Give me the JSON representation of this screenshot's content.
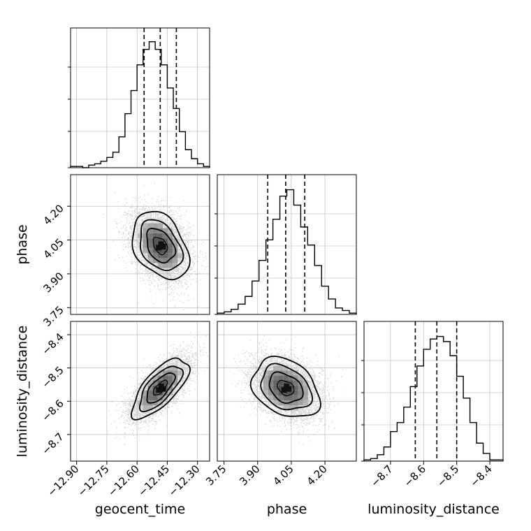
{
  "chart_data": {
    "type": "corner",
    "parameters": [
      "geocent_time",
      "phase",
      "luminosity_distance"
    ],
    "ranges": {
      "geocent_time": [
        -12.93,
        -12.24
      ],
      "phase": [
        3.72,
        4.34
      ],
      "luminosity_distance": [
        -8.78,
        -8.36
      ]
    },
    "ticks": {
      "geocent_time": [
        -12.9,
        -12.75,
        -12.6,
        -12.45,
        -12.3
      ],
      "phase": [
        3.75,
        3.9,
        4.05,
        4.2
      ],
      "luminosity_distance": [
        -8.7,
        -8.6,
        -8.5,
        -8.4
      ]
    },
    "tick_labels": {
      "geocent_time": [
        "−12.90",
        "−12.75",
        "−12.60",
        "−12.45",
        "−12.30"
      ],
      "phase": [
        "3.75",
        "3.90",
        "4.05",
        "4.20"
      ],
      "luminosity_distance": [
        "−8.7",
        "−8.6",
        "−8.5",
        "−8.4"
      ]
    },
    "histograms": [
      {
        "parameter": "geocent_time",
        "bin_range": [
          -12.93,
          -12.24
        ],
        "counts": [
          0.01,
          0.01,
          0.0,
          0.02,
          0.03,
          0.05,
          0.08,
          0.12,
          0.24,
          0.42,
          0.6,
          0.8,
          0.92,
          0.98,
          0.92,
          0.8,
          0.62,
          0.46,
          0.28,
          0.14,
          0.07,
          0.03,
          0.01
        ],
        "quantiles": [
          -12.565,
          -12.485,
          -12.405
        ]
      },
      {
        "parameter": "phase",
        "bin_range": [
          3.72,
          4.34
        ],
        "counts": [
          0.01,
          0.02,
          0.04,
          0.08,
          0.14,
          0.26,
          0.42,
          0.58,
          0.74,
          0.92,
          0.97,
          0.85,
          0.68,
          0.54,
          0.38,
          0.22,
          0.12,
          0.05,
          0.03,
          0.01
        ],
        "quantiles": [
          3.945,
          4.025,
          4.11
        ]
      },
      {
        "parameter": "luminosity_distance",
        "bin_range": [
          -8.78,
          -8.36
        ],
        "counts": [
          0.01,
          0.02,
          0.05,
          0.11,
          0.23,
          0.3,
          0.42,
          0.58,
          0.74,
          0.87,
          0.95,
          0.97,
          0.93,
          0.82,
          0.66,
          0.49,
          0.3,
          0.14,
          0.06,
          0.01,
          0.01
        ],
        "quantiles": [
          -8.625,
          -8.56,
          -8.5
        ]
      }
    ],
    "scatter_panels": [
      {
        "x": "geocent_time",
        "y": "phase",
        "center": [
          -12.485,
          4.025
        ],
        "sd": [
          0.07,
          0.075
        ],
        "rho": -0.35,
        "contour_levels_sigma": [
          0.5,
          1.0,
          1.5,
          2.0
        ],
        "points": 6500
      },
      {
        "x": "geocent_time",
        "y": "luminosity_distance",
        "center": [
          -12.485,
          -8.56
        ],
        "sd": [
          0.07,
          0.045
        ],
        "rho": 0.7,
        "contour_levels_sigma": [
          0.5,
          1.0,
          1.5,
          2.0
        ],
        "points": 6500
      },
      {
        "x": "phase",
        "y": "luminosity_distance",
        "center": [
          4.025,
          -8.56
        ],
        "sd": [
          0.075,
          0.045
        ],
        "rho": -0.3,
        "contour_levels_sigma": [
          0.5,
          1.0,
          1.5,
          2.0
        ],
        "points": 6500
      }
    ],
    "grid": true,
    "colors": {
      "points": "#b5b5b5",
      "lines": "#000000",
      "grid": "#b0b0b0",
      "quantile_style": "dashed"
    }
  }
}
